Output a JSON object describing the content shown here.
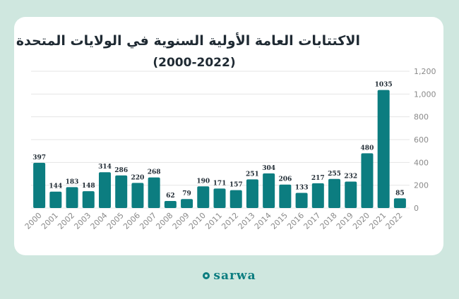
{
  "chart_data": {
    "type": "bar",
    "title": "الاكتتابات العامة الأولية السنوية في الولايات المتحدة",
    "subtitle": "(2000-2022)",
    "categories": [
      "2000",
      "2001",
      "2002",
      "2003",
      "2004",
      "2005",
      "2006",
      "2007",
      "2008",
      "2009",
      "2010",
      "2011",
      "2012",
      "2013",
      "2014",
      "2015",
      "2016",
      "2017",
      "2018",
      "2019",
      "2020",
      "2021",
      "2022"
    ],
    "values": [
      397,
      144,
      183,
      148,
      314,
      286,
      220,
      268,
      62,
      79,
      190,
      171,
      157,
      251,
      304,
      206,
      133,
      217,
      255,
      232,
      480,
      1035,
      85
    ],
    "data_labels": [
      "397",
      "144",
      "183",
      "148",
      "314",
      "286",
      "220",
      "268",
      "62",
      "79",
      "190",
      "171",
      "157",
      "251",
      "304",
      "206",
      "133",
      "217",
      "255",
      "232",
      "480",
      "1035",
      "85"
    ],
    "ylim": [
      0,
      1200
    ],
    "yticks": [
      0,
      200,
      400,
      600,
      800,
      1000,
      1200
    ],
    "ytick_labels": [
      "0",
      "200",
      "400",
      "600",
      "800",
      "1,000",
      "1,200"
    ],
    "y_axis_side": "right",
    "grid": true,
    "bar_color": "#0c7d80",
    "grid_color": "#e4e4e4",
    "text_color": "#8a8a8a"
  },
  "brand": {
    "name": "sarwa",
    "color": "#0c7d80"
  }
}
